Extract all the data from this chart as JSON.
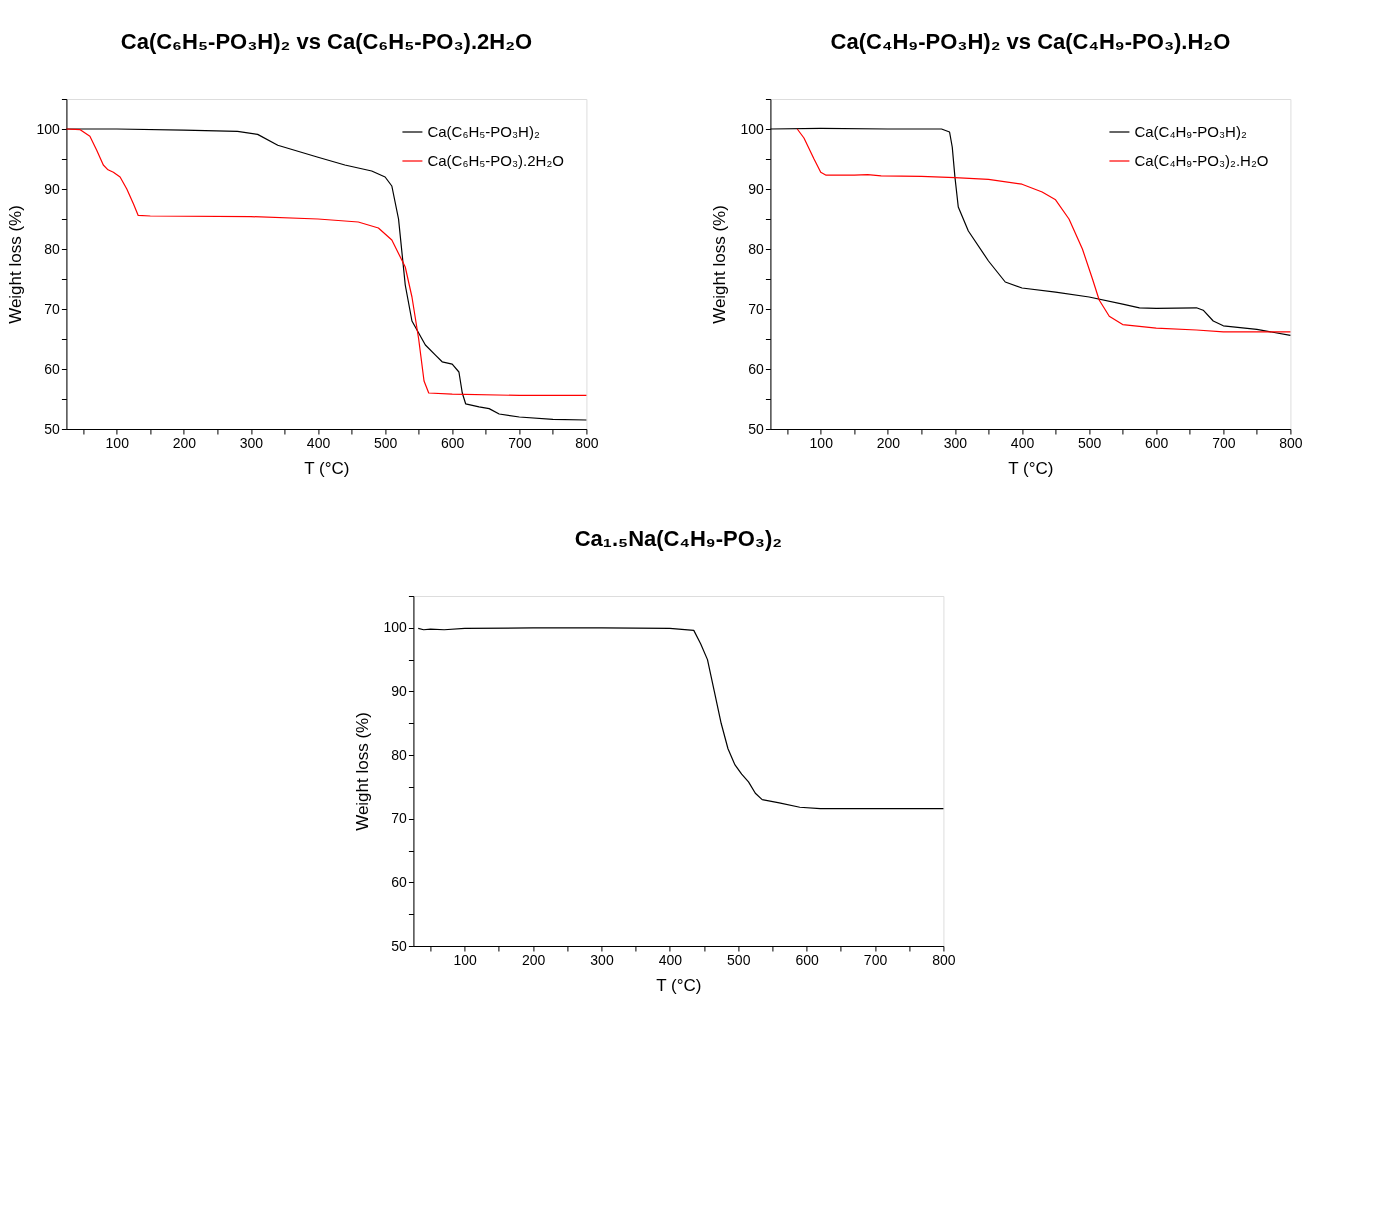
{
  "chart_data": [
    {
      "type": "line",
      "title": "Ca(C₆H₅-PO₃H)₂ vs Ca(C₆H₅-PO₃).2H₂O",
      "xlabel": "T (°C)",
      "ylabel": "Weight loss (%)",
      "xlim": [
        25,
        800
      ],
      "ylim": [
        50,
        105
      ],
      "xticks": [
        {
          "value": 50,
          "label": null
        },
        100,
        {
          "value": 150,
          "label": null
        },
        200,
        {
          "value": 250,
          "label": null
        },
        300,
        {
          "value": 350,
          "label": null
        },
        400,
        {
          "value": 450,
          "label": null
        },
        500,
        {
          "value": 550,
          "label": null
        },
        600,
        {
          "value": 650,
          "label": null
        },
        700,
        {
          "value": 750,
          "label": null
        },
        800
      ],
      "yticks": [
        50,
        {
          "value": 55,
          "label": null
        },
        60,
        {
          "value": 65,
          "label": null
        },
        70,
        {
          "value": 75,
          "label": null
        },
        80,
        {
          "value": 85,
          "label": null
        },
        90,
        {
          "value": 95,
          "label": null
        },
        100,
        {
          "value": 105,
          "label": null
        }
      ],
      "grid": false,
      "legend": "top right",
      "marker": "none",
      "line_style": "solid",
      "series": [
        {
          "name": "Ca(C₆H₅-PO₃H)₂",
          "color": "#000000",
          "x": [
            25,
            100,
            200,
            280,
            310,
            340,
            400,
            440,
            480,
            500,
            510,
            520,
            530,
            540,
            560,
            575,
            585,
            600,
            610,
            615,
            620,
            640,
            655,
            670,
            700,
            750,
            800
          ],
          "values": [
            100,
            100,
            99.8,
            99.6,
            99.1,
            97.3,
            95.3,
            94,
            93,
            92,
            90.5,
            85,
            74,
            68,
            64,
            62.3,
            61.2,
            60.8,
            59.5,
            56,
            54.2,
            53.7,
            53.4,
            52.5,
            52,
            51.6,
            51.5
          ]
        },
        {
          "name": "Ca(C₆H₅-PO₃).2H₂O",
          "color": "#ff0000",
          "x": [
            25,
            45,
            60,
            70,
            80,
            87,
            95,
            105,
            115,
            125,
            132,
            150,
            300,
            400,
            460,
            490,
            510,
            530,
            540,
            550,
            558,
            565,
            600,
            700,
            800
          ],
          "values": [
            100,
            99.9,
            98.8,
            96.5,
            94,
            93.2,
            92.8,
            92,
            90,
            87.5,
            85.6,
            85.5,
            85.4,
            85,
            84.5,
            83.5,
            81.5,
            77,
            72,
            65,
            58,
            56,
            55.8,
            55.6,
            55.6
          ]
        }
      ]
    },
    {
      "type": "line",
      "title": "Ca(C₄H₉-PO₃H)₂ vs Ca(C₄H₉-PO₃).H₂O",
      "xlabel": "T (°C)",
      "ylabel": "Weight loss (%)",
      "xlim": [
        25,
        800
      ],
      "ylim": [
        50,
        105
      ],
      "xticks": [
        {
          "value": 50,
          "label": null
        },
        100,
        {
          "value": 150,
          "label": null
        },
        200,
        {
          "value": 250,
          "label": null
        },
        300,
        {
          "value": 350,
          "label": null
        },
        400,
        {
          "value": 450,
          "label": null
        },
        500,
        {
          "value": 550,
          "label": null
        },
        600,
        {
          "value": 650,
          "label": null
        },
        700,
        {
          "value": 750,
          "label": null
        },
        800
      ],
      "yticks": [
        50,
        {
          "value": 55,
          "label": null
        },
        60,
        {
          "value": 65,
          "label": null
        },
        70,
        {
          "value": 75,
          "label": null
        },
        80,
        {
          "value": 85,
          "label": null
        },
        90,
        {
          "value": 95,
          "label": null
        },
        100,
        {
          "value": 105,
          "label": null
        }
      ],
      "grid": false,
      "legend": "top right",
      "marker": "none",
      "line_style": "solid",
      "series": [
        {
          "name": "Ca(C₄H₉-PO₃H)₂",
          "color": "#000000",
          "x": [
            25,
            100,
            200,
            280,
            292,
            296,
            300,
            305,
            320,
            350,
            375,
            400,
            450,
            500,
            550,
            575,
            600,
            660,
            670,
            685,
            700,
            750,
            800
          ],
          "values": [
            100,
            100.1,
            100,
            100,
            99.5,
            97,
            92,
            87,
            83,
            78,
            74.5,
            73.5,
            72.8,
            72,
            70.8,
            70.2,
            70.1,
            70.2,
            69.8,
            68,
            67.2,
            66.6,
            65.6
          ]
        },
        {
          "name": "Ca(C₄H₉-PO₃)₂.H₂O",
          "color": "#ff0000",
          "x": [
            65,
            75,
            90,
            100,
            108,
            150,
            170,
            190,
            250,
            300,
            350,
            400,
            430,
            450,
            470,
            490,
            505,
            515,
            530,
            550,
            600,
            660,
            700,
            800
          ],
          "values": [
            100,
            98.5,
            95,
            92.8,
            92.3,
            92.3,
            92.4,
            92.2,
            92.1,
            91.9,
            91.6,
            90.8,
            89.5,
            88.2,
            85,
            80,
            75,
            71.5,
            68.8,
            67.4,
            66.8,
            66.5,
            66.2,
            66.2
          ]
        }
      ]
    },
    {
      "type": "line",
      "title": "Ca₁.₅Na(C₄H₉-PO₃)₂",
      "xlabel": "T (°C)",
      "ylabel": "Weight loss (%)",
      "xlim": [
        25,
        800
      ],
      "ylim": [
        50,
        105
      ],
      "xticks": [
        {
          "value": 50,
          "label": null
        },
        100,
        {
          "value": 150,
          "label": null
        },
        200,
        {
          "value": 250,
          "label": null
        },
        300,
        {
          "value": 350,
          "label": null
        },
        400,
        {
          "value": 450,
          "label": null
        },
        500,
        {
          "value": 550,
          "label": null
        },
        600,
        {
          "value": 650,
          "label": null
        },
        700,
        {
          "value": 750,
          "label": null
        },
        800
      ],
      "yticks": [
        50,
        {
          "value": 55,
          "label": null
        },
        60,
        {
          "value": 65,
          "label": null
        },
        70,
        {
          "value": 75,
          "label": null
        },
        80,
        {
          "value": 85,
          "label": null
        },
        90,
        {
          "value": 95,
          "label": null
        },
        100,
        {
          "value": 105,
          "label": null
        }
      ],
      "grid": false,
      "marker": "none",
      "line_style": "solid",
      "series": [
        {
          "color": "#000000",
          "x": [
            32,
            40,
            50,
            70,
            100,
            200,
            300,
            400,
            435,
            445,
            455,
            465,
            475,
            485,
            495,
            505,
            515,
            525,
            535,
            560,
            590,
            620,
            700,
            800
          ],
          "values": [
            99.9,
            99.7,
            99.8,
            99.7,
            99.9,
            100,
            100,
            99.9,
            99.6,
            97.5,
            95,
            90,
            85,
            81,
            78.5,
            77,
            75.8,
            74,
            73,
            72.5,
            71.8,
            71.6,
            71.6,
            71.6
          ]
        }
      ]
    }
  ]
}
